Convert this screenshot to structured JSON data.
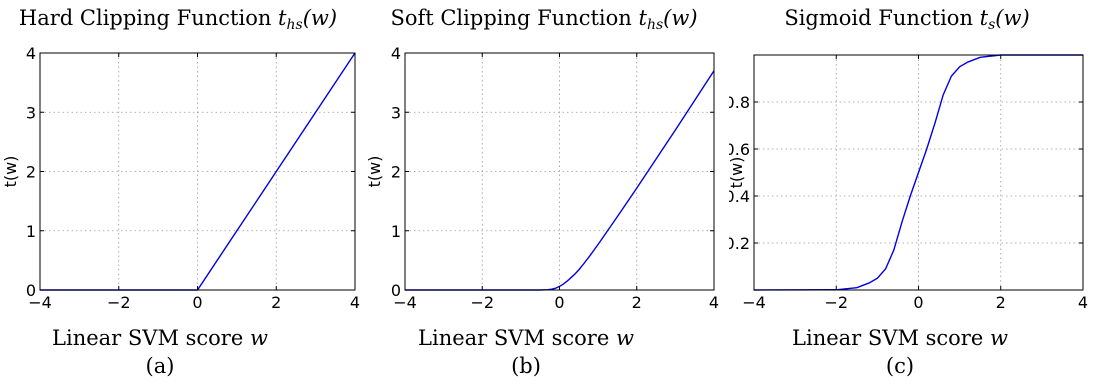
{
  "chart_data": [
    {
      "type": "line",
      "panel_label": "(a)",
      "title_text": "Hard Clipping Function ",
      "title_var": "t",
      "title_sub": "hs",
      "title_arg": "(w)",
      "xlabel_text": "Linear SVM score ",
      "xlabel_var": "w",
      "ylabel": "t(w)",
      "xlim": [
        -4,
        4
      ],
      "ylim": [
        0,
        4
      ],
      "xticks": [
        -4,
        -2,
        0,
        2,
        4
      ],
      "xtick_labels": [
        "−4",
        "−2",
        "0",
        "2",
        "4"
      ],
      "yticks": [
        0,
        1,
        2,
        3,
        4
      ],
      "ytick_labels": [
        "0",
        "1",
        "2",
        "3",
        "4"
      ],
      "grid": true,
      "series": [
        {
          "x": [
            -4,
            0,
            4
          ],
          "y": [
            0,
            0,
            4
          ]
        }
      ]
    },
    {
      "type": "line",
      "panel_label": "(b)",
      "title_text": "Soft Clipping Function ",
      "title_var": "t",
      "title_sub": "hs",
      "title_arg": "(w)",
      "xlabel_text": "Linear SVM score ",
      "xlabel_var": "w",
      "ylabel": "t(w)",
      "xlim": [
        -4,
        4
      ],
      "ylim": [
        0,
        4
      ],
      "xticks": [
        -4,
        -2,
        0,
        2,
        4
      ],
      "xtick_labels": [
        "−4",
        "−2",
        "0",
        "2",
        "4"
      ],
      "yticks": [
        0,
        1,
        2,
        3,
        4
      ],
      "ytick_labels": [
        "0",
        "1",
        "2",
        "3",
        "4"
      ],
      "grid": true,
      "series": [
        {
          "x": [
            -4,
            -1,
            -0.5,
            -0.3,
            -0.2,
            -0.1,
            0,
            0.1,
            0.2,
            0.3,
            0.4,
            0.5,
            0.6,
            0.8,
            1.0,
            1.5,
            2,
            3,
            4
          ],
          "y": [
            0,
            0,
            0,
            0.005,
            0.013,
            0.03,
            0.06,
            0.1,
            0.15,
            0.21,
            0.27,
            0.34,
            0.42,
            0.59,
            0.77,
            1.24,
            1.72,
            2.7,
            3.7
          ]
        }
      ]
    },
    {
      "type": "line",
      "panel_label": "(c)",
      "title_text": "Sigmoid Function ",
      "title_var": "t",
      "title_sub": "s",
      "title_arg": "(w)",
      "xlabel_text": "Linear SVM score ",
      "xlabel_var": "w",
      "ylabel": "t(w)",
      "xlim": [
        -4,
        4
      ],
      "ylim": [
        0,
        1
      ],
      "xticks": [
        -4,
        -2,
        0,
        2,
        4
      ],
      "xtick_labels": [
        "−4",
        "−2",
        "0",
        "2",
        "4"
      ],
      "yticks": [
        0.2,
        0.4,
        0.6,
        0.8
      ],
      "ytick_labels": [
        "0.2",
        "0.4",
        "0.6",
        "0.8"
      ],
      "grid": true,
      "series": [
        {
          "x": [
            -4,
            -2,
            -1.5,
            -1.2,
            -1.0,
            -0.8,
            -0.6,
            -0.4,
            -0.2,
            0,
            0.2,
            0.4,
            0.6,
            0.8,
            1.0,
            1.2,
            1.5,
            2,
            4
          ],
          "y": [
            0,
            0.001,
            0.01,
            0.03,
            0.05,
            0.09,
            0.17,
            0.29,
            0.4,
            0.5,
            0.6,
            0.71,
            0.83,
            0.91,
            0.95,
            0.97,
            0.99,
            1.0,
            1.0
          ]
        }
      ]
    }
  ]
}
